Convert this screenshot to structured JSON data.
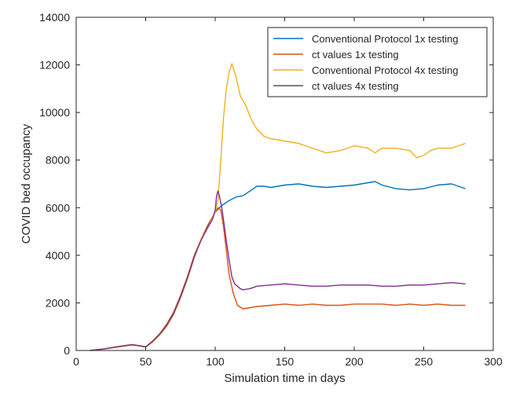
{
  "chart_data": {
    "type": "line",
    "title": "",
    "xlabel": "Simulation time in days",
    "ylabel": "COVID bed occupancy",
    "xlim": [
      0,
      300
    ],
    "ylim": [
      0,
      14000
    ],
    "xticks": [
      "0",
      "50",
      "100",
      "150",
      "200",
      "250",
      "300"
    ],
    "yticks": [
      "0",
      "2000",
      "4000",
      "6000",
      "8000",
      "10000",
      "12000",
      "14000"
    ],
    "grid": false,
    "legend_position": "top-right",
    "series": [
      {
        "name": "Conventional Protocol 1x testing",
        "color": "#0072BD",
        "points": [
          [
            10,
            0
          ],
          [
            20,
            60
          ],
          [
            30,
            150
          ],
          [
            40,
            230
          ],
          [
            45,
            200
          ],
          [
            50,
            150
          ],
          [
            55,
            350
          ],
          [
            60,
            650
          ],
          [
            65,
            1000
          ],
          [
            70,
            1500
          ],
          [
            75,
            2200
          ],
          [
            80,
            3000
          ],
          [
            85,
            3900
          ],
          [
            90,
            4700
          ],
          [
            95,
            5300
          ],
          [
            100,
            5800
          ],
          [
            103,
            6000
          ],
          [
            105,
            6100
          ],
          [
            110,
            6300
          ],
          [
            115,
            6450
          ],
          [
            120,
            6500
          ],
          [
            125,
            6700
          ],
          [
            130,
            6900
          ],
          [
            135,
            6900
          ],
          [
            140,
            6850
          ],
          [
            150,
            6950
          ],
          [
            160,
            7000
          ],
          [
            170,
            6900
          ],
          [
            180,
            6850
          ],
          [
            190,
            6900
          ],
          [
            200,
            6950
          ],
          [
            210,
            7050
          ],
          [
            215,
            7100
          ],
          [
            220,
            6950
          ],
          [
            230,
            6800
          ],
          [
            240,
            6750
          ],
          [
            250,
            6800
          ],
          [
            260,
            6950
          ],
          [
            270,
            7000
          ],
          [
            275,
            6900
          ],
          [
            280,
            6800
          ]
        ]
      },
      {
        "name": "ct values 1x testing",
        "color": "#D95319",
        "points": [
          [
            10,
            0
          ],
          [
            20,
            70
          ],
          [
            30,
            170
          ],
          [
            40,
            250
          ],
          [
            45,
            210
          ],
          [
            50,
            160
          ],
          [
            55,
            400
          ],
          [
            60,
            700
          ],
          [
            65,
            1100
          ],
          [
            70,
            1600
          ],
          [
            75,
            2300
          ],
          [
            80,
            3100
          ],
          [
            85,
            4000
          ],
          [
            90,
            4700
          ],
          [
            95,
            5300
          ],
          [
            100,
            5800
          ],
          [
            102,
            6000
          ],
          [
            104,
            5900
          ],
          [
            106,
            5200
          ],
          [
            108,
            4200
          ],
          [
            110,
            3200
          ],
          [
            113,
            2400
          ],
          [
            116,
            1900
          ],
          [
            120,
            1750
          ],
          [
            125,
            1800
          ],
          [
            130,
            1850
          ],
          [
            140,
            1900
          ],
          [
            150,
            1950
          ],
          [
            160,
            1900
          ],
          [
            170,
            1950
          ],
          [
            180,
            1900
          ],
          [
            190,
            1900
          ],
          [
            200,
            1950
          ],
          [
            210,
            1950
          ],
          [
            220,
            1950
          ],
          [
            230,
            1900
          ],
          [
            240,
            1950
          ],
          [
            250,
            1900
          ],
          [
            260,
            1950
          ],
          [
            270,
            1900
          ],
          [
            280,
            1900
          ]
        ]
      },
      {
        "name": "Conventional Protocol 4x testing",
        "color": "#EDB120",
        "points": [
          [
            10,
            0
          ],
          [
            20,
            60
          ],
          [
            30,
            150
          ],
          [
            40,
            230
          ],
          [
            45,
            200
          ],
          [
            50,
            150
          ],
          [
            55,
            350
          ],
          [
            60,
            650
          ],
          [
            65,
            1000
          ],
          [
            70,
            1500
          ],
          [
            75,
            2200
          ],
          [
            80,
            3000
          ],
          [
            85,
            3900
          ],
          [
            90,
            4700
          ],
          [
            95,
            5200
          ],
          [
            100,
            5800
          ],
          [
            102,
            6300
          ],
          [
            104,
            8000
          ],
          [
            106,
            9800
          ],
          [
            108,
            11000
          ],
          [
            110,
            11700
          ],
          [
            112,
            12050
          ],
          [
            115,
            11500
          ],
          [
            118,
            10700
          ],
          [
            122,
            10300
          ],
          [
            126,
            9700
          ],
          [
            130,
            9300
          ],
          [
            135,
            9000
          ],
          [
            140,
            8900
          ],
          [
            150,
            8800
          ],
          [
            160,
            8700
          ],
          [
            170,
            8500
          ],
          [
            180,
            8300
          ],
          [
            190,
            8400
          ],
          [
            200,
            8600
          ],
          [
            210,
            8500
          ],
          [
            215,
            8300
          ],
          [
            220,
            8500
          ],
          [
            230,
            8500
          ],
          [
            240,
            8400
          ],
          [
            245,
            8100
          ],
          [
            250,
            8200
          ],
          [
            255,
            8400
          ],
          [
            260,
            8500
          ],
          [
            270,
            8500
          ],
          [
            280,
            8700
          ]
        ]
      },
      {
        "name": "ct values 4x testing",
        "color": "#7E2F8E",
        "points": [
          [
            10,
            0
          ],
          [
            20,
            70
          ],
          [
            30,
            160
          ],
          [
            40,
            240
          ],
          [
            45,
            200
          ],
          [
            50,
            150
          ],
          [
            55,
            380
          ],
          [
            60,
            680
          ],
          [
            65,
            1050
          ],
          [
            70,
            1550
          ],
          [
            75,
            2250
          ],
          [
            80,
            3050
          ],
          [
            85,
            3950
          ],
          [
            90,
            4650
          ],
          [
            95,
            5200
          ],
          [
            98,
            5500
          ],
          [
            100,
            5900
          ],
          [
            101,
            6500
          ],
          [
            102,
            6700
          ],
          [
            103,
            6500
          ],
          [
            105,
            5900
          ],
          [
            108,
            4600
          ],
          [
            110,
            3800
          ],
          [
            112,
            3100
          ],
          [
            114,
            2800
          ],
          [
            118,
            2600
          ],
          [
            120,
            2550
          ],
          [
            125,
            2600
          ],
          [
            130,
            2700
          ],
          [
            140,
            2750
          ],
          [
            150,
            2800
          ],
          [
            160,
            2750
          ],
          [
            170,
            2700
          ],
          [
            180,
            2700
          ],
          [
            190,
            2750
          ],
          [
            200,
            2750
          ],
          [
            210,
            2750
          ],
          [
            220,
            2700
          ],
          [
            230,
            2700
          ],
          [
            240,
            2750
          ],
          [
            250,
            2750
          ],
          [
            260,
            2800
          ],
          [
            270,
            2850
          ],
          [
            280,
            2800
          ]
        ]
      }
    ]
  }
}
